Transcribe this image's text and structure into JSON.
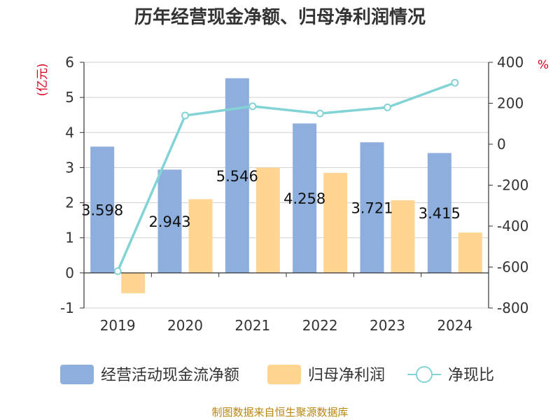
{
  "chart_data": {
    "type": "bar",
    "title": "历年经营现金净额、归母净利润情况",
    "categories": [
      "2019",
      "2020",
      "2021",
      "2022",
      "2023",
      "2024"
    ],
    "series": [
      {
        "name": "经营活动现金流净额",
        "kind": "bar",
        "axis": "left",
        "values": [
          3.598,
          2.943,
          5.546,
          4.258,
          3.721,
          3.415
        ],
        "show_labels": true
      },
      {
        "name": "归母净利润",
        "kind": "bar",
        "axis": "left",
        "values": [
          -0.58,
          2.1,
          3.0,
          2.85,
          2.07,
          1.15
        ],
        "show_labels": false
      },
      {
        "name": "净现比",
        "kind": "line",
        "axis": "right",
        "values": [
          -620,
          140,
          185,
          150,
          180,
          300
        ],
        "show_labels": false
      }
    ],
    "ylabel": "(亿元)",
    "ylabel_right": "%",
    "ylim": [
      -1,
      6
    ],
    "ylim_right": [
      -800,
      400
    ],
    "yticks": [
      "-1",
      "0",
      "1",
      "2",
      "3",
      "4",
      "5",
      "6"
    ],
    "yticks_right": [
      "-800",
      "-600",
      "-400",
      "-200",
      "0",
      "200",
      "400"
    ],
    "grid": true,
    "legend_position": "bottom",
    "colors": [
      "#8eaedd",
      "#ffd591",
      "#82d3d6"
    ],
    "source": "制图数据来自恒生聚源数据库"
  }
}
